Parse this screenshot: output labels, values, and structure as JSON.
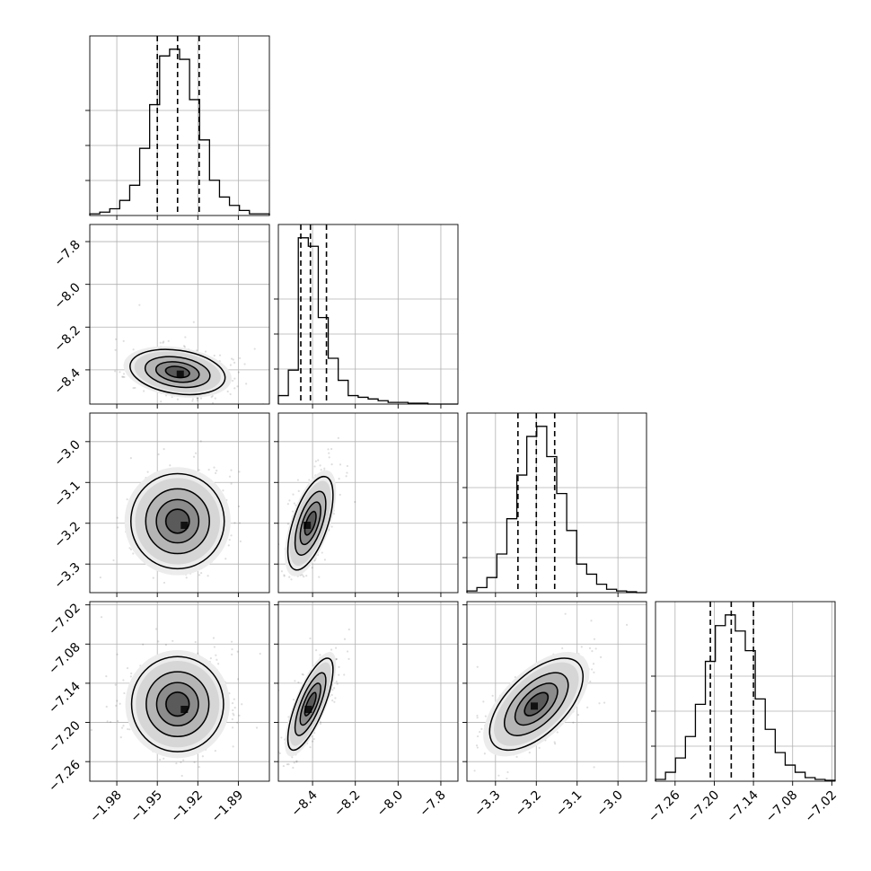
{
  "chart_data": {
    "type": "corner",
    "grid": true,
    "params": [
      {
        "range": [
          -2.0,
          -1.867
        ],
        "ticks": [
          -1.98,
          -1.95,
          -1.92,
          -1.89
        ],
        "tick_labels": [
          "−1.98",
          "−1.95",
          "−1.92",
          "−1.89"
        ],
        "quantiles": [
          -1.95,
          -1.935,
          -1.919
        ],
        "hist": [
          1,
          2,
          4,
          9,
          18,
          40,
          66,
          95,
          99,
          93,
          69,
          45,
          21,
          11,
          6,
          3,
          1,
          1
        ],
        "show_x_labels": true,
        "show_y_labels": false
      },
      {
        "range": [
          -8.56,
          -7.72
        ],
        "ticks": [
          -8.4,
          -8.2,
          -8.0,
          -7.8
        ],
        "y_ticks": [
          -7.8,
          -8.0,
          -8.2,
          -8.4
        ],
        "tick_labels": [
          "−8.4",
          "−8.2",
          "−8.0",
          "−7.8"
        ],
        "y_tick_labels": [
          "−7.8",
          "−8.0",
          "−8.2",
          "−8.4"
        ],
        "quantiles": [
          -8.455,
          -8.41,
          -8.335
        ],
        "hist": [
          5,
          20,
          98,
          93,
          51,
          27,
          14,
          5,
          4,
          3,
          2,
          1,
          1,
          0.5,
          0.5,
          0,
          0,
          0
        ],
        "show_x_labels": true,
        "show_y_labels": true
      },
      {
        "range": [
          -3.37,
          -2.93
        ],
        "ticks": [
          -3.3,
          -3.2,
          -3.1,
          -3.0
        ],
        "y_ticks": [
          -3.0,
          -3.1,
          -3.2,
          -3.3
        ],
        "tick_labels": [
          "−3.3",
          "−3.2",
          "−3.1",
          "−3.0"
        ],
        "y_tick_labels": [
          "−3.0",
          "−3.1",
          "−3.2",
          "−3.3"
        ],
        "quantiles": [
          -3.245,
          -3.2,
          -3.155
        ],
        "hist": [
          1,
          3,
          9,
          23,
          44,
          70,
          93,
          99,
          81,
          59,
          37,
          17,
          11,
          5,
          2,
          1,
          0.5,
          0
        ],
        "show_x_labels": true,
        "show_y_labels": true
      },
      {
        "range": [
          -7.29,
          -7.015
        ],
        "ticks": [
          -7.26,
          -7.2,
          -7.14,
          -7.08,
          -7.02
        ],
        "y_ticks": [
          -7.02,
          -7.08,
          -7.14,
          -7.2,
          -7.26
        ],
        "tick_labels": [
          "−7.26",
          "−7.20",
          "−7.14",
          "−7.08",
          "−7.02"
        ],
        "y_tick_labels": [
          "−7.02",
          "−7.08",
          "−7.14",
          "−7.20",
          "−7.26"
        ],
        "quantiles": [
          -7.206,
          -7.174,
          -7.14
        ],
        "hist": [
          1,
          5,
          13,
          25,
          43,
          67,
          87,
          93,
          84,
          73,
          46,
          29,
          16,
          9,
          5,
          2,
          1,
          0.5
        ],
        "show_x_labels": true,
        "show_y_labels": true
      }
    ],
    "pairs": [
      {
        "x": 0,
        "y": 1,
        "center": [
          -1.935,
          -8.41
        ],
        "scale": [
          0.016,
          0.048
        ],
        "corr": -0.25,
        "peak": [
          -1.933,
          -8.42
        ]
      },
      {
        "x": 0,
        "y": 2,
        "center": [
          -1.935,
          -3.195
        ],
        "scale": [
          0.016,
          0.052
        ],
        "corr": 0.0,
        "peak": [
          -1.93,
          -3.205
        ]
      },
      {
        "x": 1,
        "y": 2,
        "center": [
          -8.41,
          -3.2
        ],
        "scale": [
          0.048,
          0.052
        ],
        "corr": 0.6,
        "peak": [
          -8.425,
          -3.205
        ]
      },
      {
        "x": 0,
        "y": 3,
        "center": [
          -1.935,
          -7.172
        ],
        "scale": [
          0.016,
          0.032
        ],
        "corr": 0.0,
        "peak": [
          -1.93,
          -7.18
        ]
      },
      {
        "x": 1,
        "y": 3,
        "center": [
          -8.41,
          -7.172
        ],
        "scale": [
          0.048,
          0.032
        ],
        "corr": 0.75,
        "peak": [
          -8.42,
          -7.18
        ]
      },
      {
        "x": 2,
        "y": 3,
        "center": [
          -3.2,
          -7.172
        ],
        "scale": [
          0.052,
          0.032
        ],
        "corr": 0.6,
        "peak": [
          -3.205,
          -7.175
        ]
      }
    ]
  }
}
